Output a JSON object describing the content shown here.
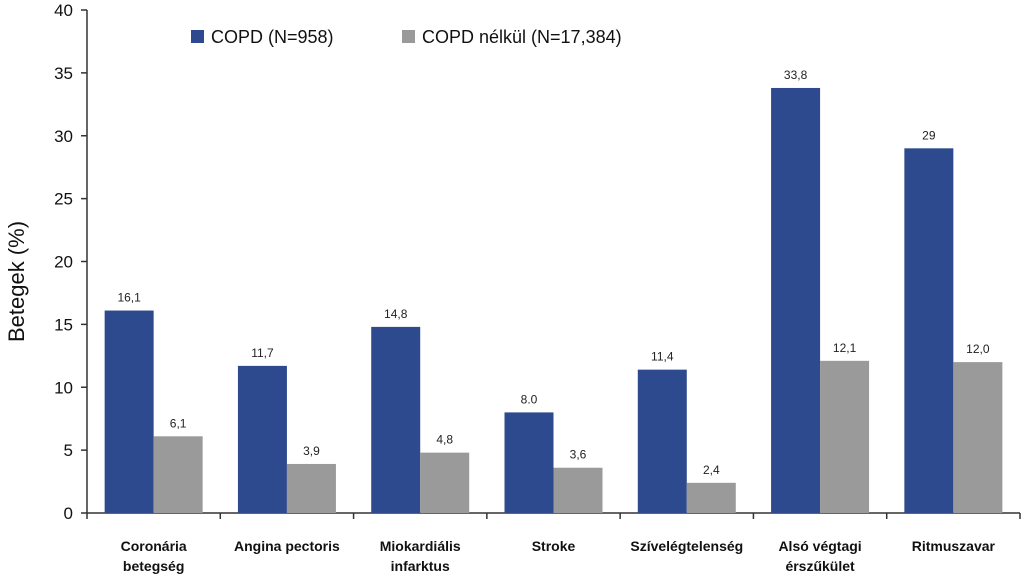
{
  "chart_data": {
    "type": "bar",
    "title": "",
    "xlabel": "",
    "ylabel": "Betegek (%)",
    "ylim": [
      0,
      40
    ],
    "yticks": [
      0,
      5,
      10,
      15,
      20,
      25,
      30,
      35,
      40
    ],
    "grid": false,
    "legend_position": "top-left",
    "categories": [
      [
        "Coronária",
        "betegség"
      ],
      [
        "Angina pectoris"
      ],
      [
        "Miokardiális",
        "infarktus"
      ],
      [
        "Stroke"
      ],
      [
        "Szívelégtelenség"
      ],
      [
        "Alsó végtagi",
        "érszűkület"
      ],
      [
        "Ritmuszavar"
      ]
    ],
    "series": [
      {
        "name": "COPD (N=958)",
        "color": "#2E4A8E",
        "values": [
          16.1,
          11.7,
          14.8,
          8.0,
          11.4,
          33.8,
          29
        ],
        "labels": [
          "16,1",
          "11,7",
          "14,8",
          "8.0",
          "11,4",
          "33,8",
          "29"
        ]
      },
      {
        "name": "COPD nélkül (N=17,384)",
        "color": "#9A9A9A",
        "values": [
          6.1,
          3.9,
          4.8,
          3.6,
          2.4,
          12.1,
          12.0
        ],
        "labels": [
          "6,1",
          "3,9",
          "4,8",
          "3,6",
          "2,4",
          "12,1",
          "12,0"
        ]
      }
    ]
  }
}
